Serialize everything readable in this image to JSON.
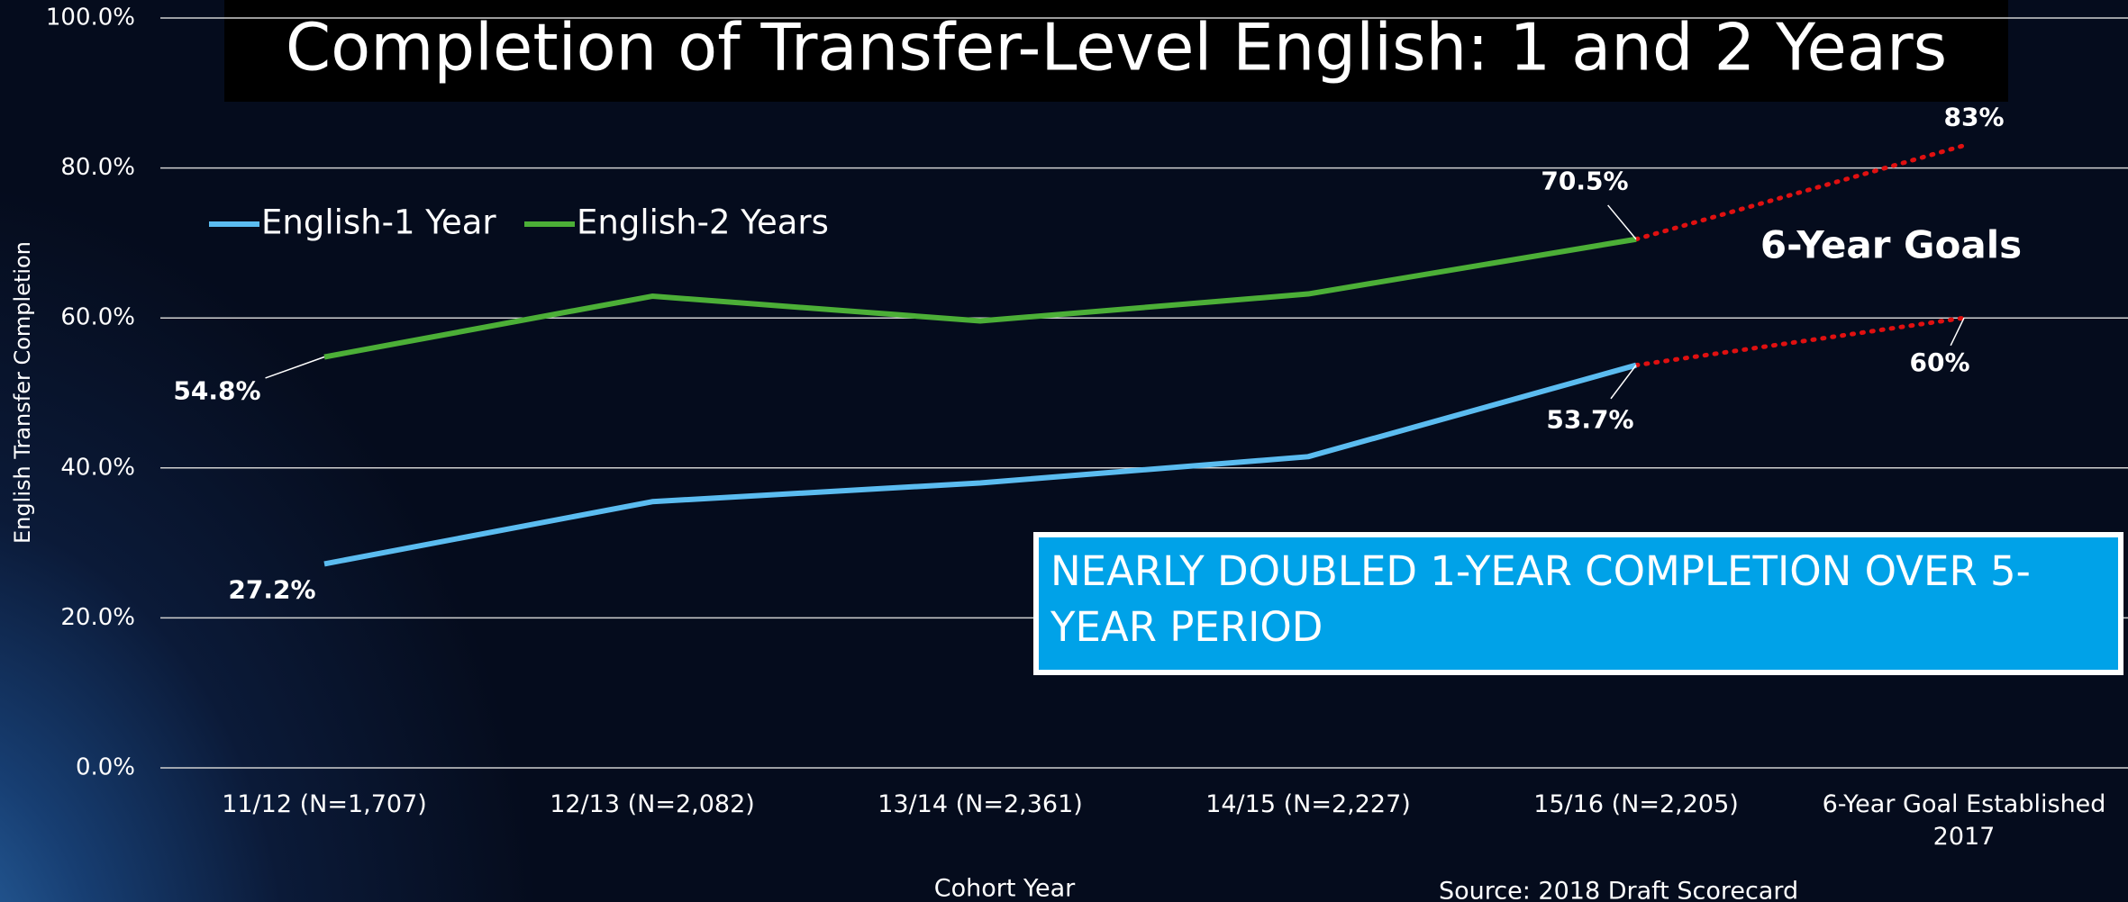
{
  "chart_data": {
    "type": "line",
    "title": "Completion of Transfer-Level English: 1 and 2 Years",
    "y_label": "English Transfer Completion",
    "x_label": "Cohort Year",
    "source": "Source: 2018 Draft Scorecard",
    "callout": "NEARLY DOUBLED 1-YEAR COMPLETION OVER 5-YEAR PERIOD",
    "categories": [
      "11/12 (N=1,707)",
      "12/13 (N=2,082)",
      "13/14 (N=2,361)",
      "14/15 (N=2,227)",
      "15/16 (N=2,205)",
      "6-Year Goal Established 2017"
    ],
    "series": [
      {
        "name": "English-1 Year",
        "color": "#5bbcf0",
        "values": [
          27.2,
          35.5,
          38,
          41.5,
          53.7,
          null
        ],
        "value_labels": [
          "27.2%",
          null,
          null,
          null,
          "53.7%",
          null
        ]
      },
      {
        "name": "English-2 Years",
        "color": "#4caf37",
        "values": [
          54.8,
          62.9,
          59.6,
          63.2,
          70.5,
          null
        ],
        "value_labels": [
          "54.8%",
          null,
          null,
          null,
          "70.5%",
          null
        ]
      }
    ],
    "goals": {
      "annotation": "6-Year Goals",
      "color": "#e01010",
      "values": [
        60,
        83
      ],
      "value_labels": [
        "60%",
        "83%"
      ]
    },
    "ylim": [
      0,
      100
    ],
    "yticks": [
      {
        "value": 0,
        "label": "0.0%"
      },
      {
        "value": 20,
        "label": "20.0%"
      },
      {
        "value": 40,
        "label": "40.0%"
      },
      {
        "value": 60,
        "label": "60.0%"
      },
      {
        "value": 80,
        "label": "80.0%"
      },
      {
        "value": 100,
        "label": "100.0%"
      }
    ],
    "grid": true
  }
}
